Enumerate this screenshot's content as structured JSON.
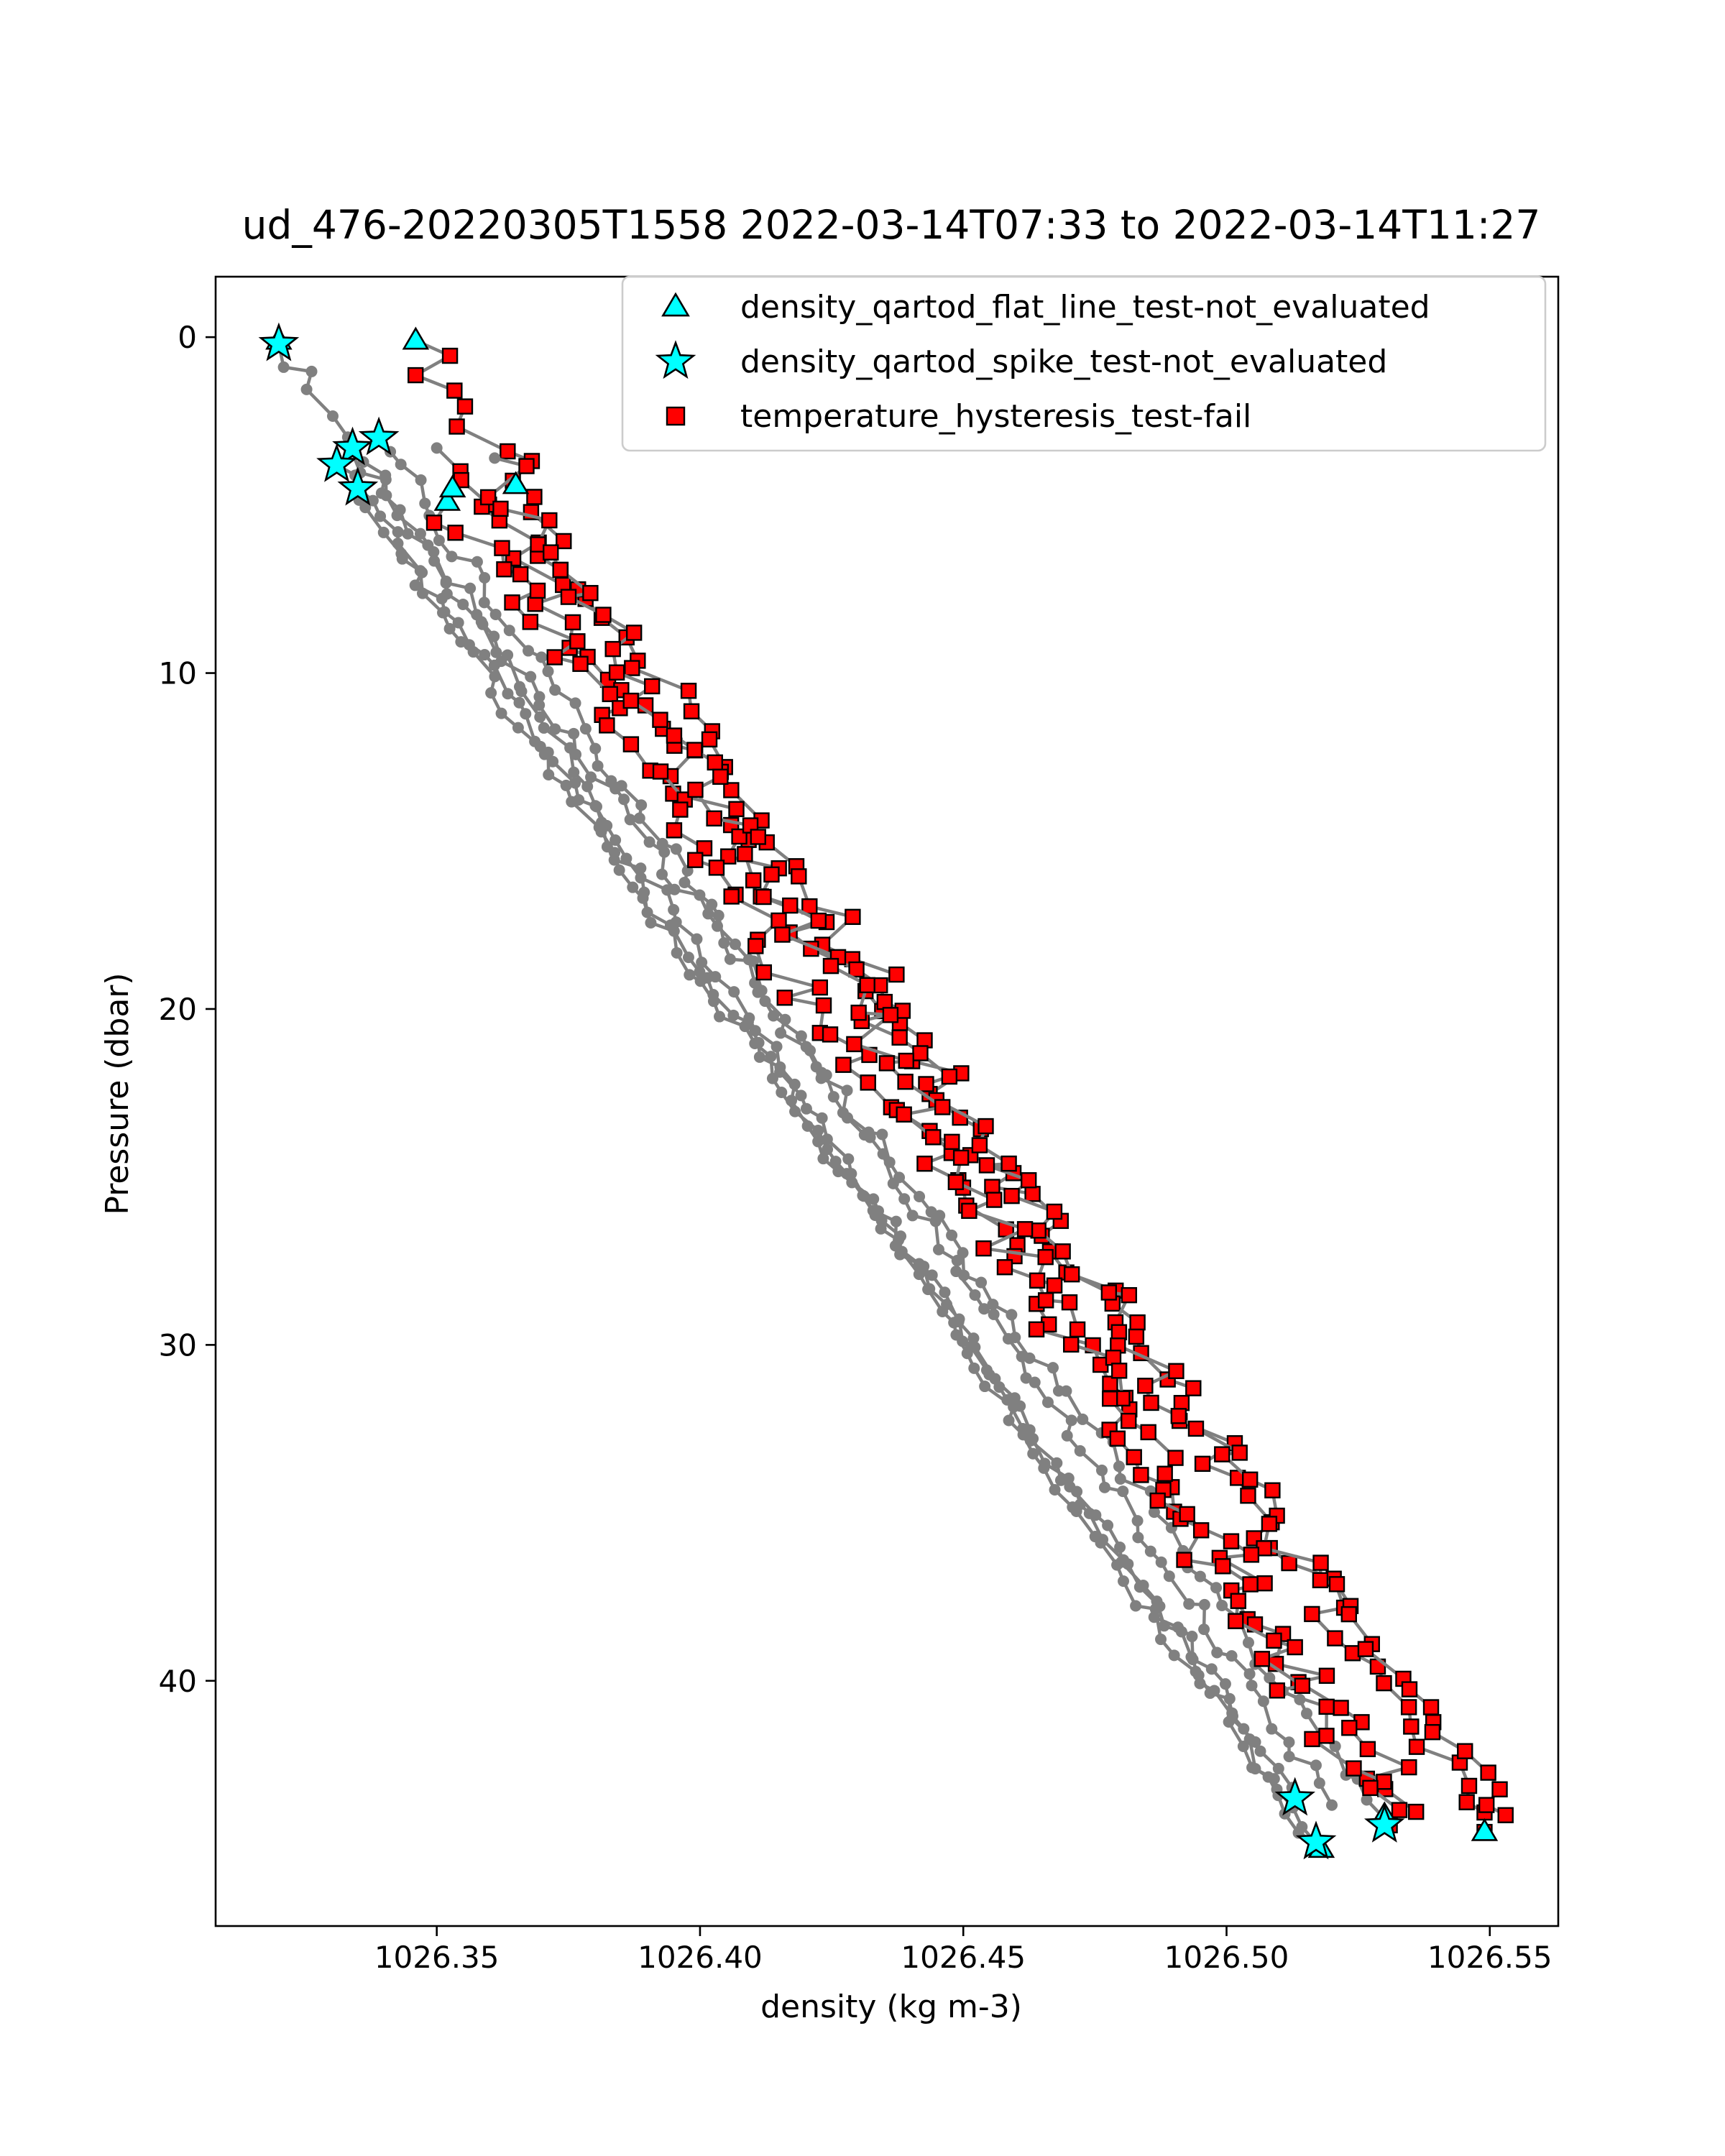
{
  "chart_data": {
    "type": "scatter",
    "title": "ud_476-20220305T1558 2022-03-14T07:33 to 2022-03-14T11:27",
    "xlabel": "density (kg m-3)",
    "ylabel": "Pressure (dbar)",
    "xlim": [
      1026.308,
      1026.563
    ],
    "ylim": [
      47.3,
      -1.8
    ],
    "y_inverted": true,
    "grid": false,
    "legend_position": "top-right",
    "xticks": [
      1026.35,
      1026.4,
      1026.45,
      1026.5,
      1026.55
    ],
    "xtick_labels": [
      "1026.35",
      "1026.40",
      "1026.45",
      "1026.50",
      "1026.55"
    ],
    "yticks": [
      0,
      10,
      20,
      30,
      40
    ],
    "ytick_labels": [
      "0",
      "10",
      "20",
      "30",
      "40"
    ],
    "colors": {
      "profile_line": "#808080",
      "flat_line_marker": "#00ffff",
      "spike_marker": "#00ffff",
      "hysteresis_marker": "#ff0000",
      "marker_edge": "#000000"
    },
    "legend": [
      {
        "label": "density_qartod_flat_line_test-not_evaluated",
        "marker": "triangle",
        "color": "#00ffff"
      },
      {
        "label": "density_qartod_spike_test-not_evaluated",
        "marker": "star",
        "color": "#00ffff"
      },
      {
        "label": "temperature_hysteresis_test-fail",
        "marker": "square",
        "color": "#ff0000"
      }
    ],
    "profiles": [
      {
        "kind": "down",
        "start": [
          1026.32,
          0.2
        ],
        "end": [
          1026.518,
          45.0
        ]
      },
      {
        "kind": "down",
        "start": [
          1026.335,
          4.5
        ],
        "end": [
          1026.513,
          43.5
        ]
      },
      {
        "kind": "down",
        "start": [
          1026.331,
          3.8
        ],
        "end": [
          1026.517,
          44.8
        ]
      },
      {
        "kind": "down",
        "start": [
          1026.334,
          3.3
        ],
        "end": [
          1026.53,
          44.1
        ]
      },
      {
        "kind": "down",
        "start": [
          1026.339,
          3.0
        ],
        "end": [
          1026.52,
          43.7
        ]
      },
      {
        "kind": "up",
        "start": [
          1026.346,
          0.1
        ],
        "end": [
          1026.549,
          44.5
        ]
      },
      {
        "kind": "up",
        "start": [
          1026.35,
          3.3
        ],
        "end": [
          1026.553,
          44.0
        ]
      },
      {
        "kind": "up",
        "start": [
          1026.352,
          4.9
        ],
        "end": [
          1026.536,
          43.9
        ]
      },
      {
        "kind": "up",
        "start": [
          1026.361,
          3.6
        ],
        "end": [
          1026.531,
          44.3
        ]
      }
    ],
    "flat_line_points": [
      {
        "x": 1026.32,
        "y": 0.1
      },
      {
        "x": 1026.346,
        "y": 0.1
      },
      {
        "x": 1026.352,
        "y": 4.9
      },
      {
        "x": 1026.353,
        "y": 4.5
      },
      {
        "x": 1026.365,
        "y": 4.4
      },
      {
        "x": 1026.518,
        "y": 45.0
      },
      {
        "x": 1026.53,
        "y": 44.0
      },
      {
        "x": 1026.549,
        "y": 44.5
      }
    ],
    "spike_points": [
      {
        "x": 1026.32,
        "y": 0.2
      },
      {
        "x": 1026.339,
        "y": 3.0
      },
      {
        "x": 1026.334,
        "y": 3.3
      },
      {
        "x": 1026.331,
        "y": 3.8
      },
      {
        "x": 1026.335,
        "y": 4.5
      },
      {
        "x": 1026.513,
        "y": 43.5
      },
      {
        "x": 1026.517,
        "y": 44.8
      },
      {
        "x": 1026.53,
        "y": 44.3
      }
    ]
  }
}
